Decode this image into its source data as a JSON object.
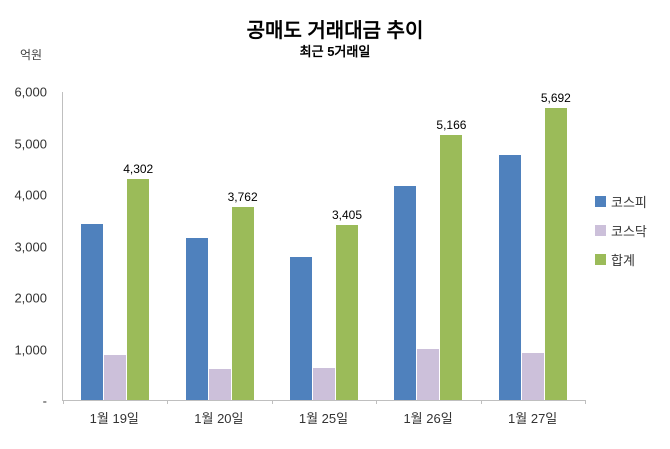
{
  "chart_data": {
    "type": "bar",
    "title": "공매도 거래대금 추이",
    "subtitle": "최근 5거래일",
    "ylabel": "억원",
    "xlabel": "",
    "categories": [
      "1월 19일",
      "1월 20일",
      "1월 25일",
      "1월 26일",
      "1월 27일"
    ],
    "series": [
      {
        "name": "코스피",
        "color": "#4F81BD",
        "values": [
          3420,
          3150,
          2790,
          4170,
          4770
        ]
      },
      {
        "name": "코스닥",
        "color": "#CCC0DA",
        "values": [
          882,
          612,
          615,
          996,
          922
        ]
      },
      {
        "name": "합계",
        "color": "#9BBB59",
        "values": [
          4302,
          3762,
          3405,
          5166,
          5692
        ],
        "data_labels": [
          "4,302",
          "3,762",
          "3,405",
          "5,166",
          "5,692"
        ]
      }
    ],
    "ylim": [
      0,
      6000
    ],
    "yticks": [
      {
        "value": 0,
        "label": "-"
      },
      {
        "value": 1000,
        "label": "1,000"
      },
      {
        "value": 2000,
        "label": "2,000"
      },
      {
        "value": 3000,
        "label": "3,000"
      },
      {
        "value": 4000,
        "label": "4,000"
      },
      {
        "value": 5000,
        "label": "5,000"
      },
      {
        "value": 6000,
        "label": "6,000"
      }
    ],
    "grid": false,
    "legend_position": "right"
  }
}
